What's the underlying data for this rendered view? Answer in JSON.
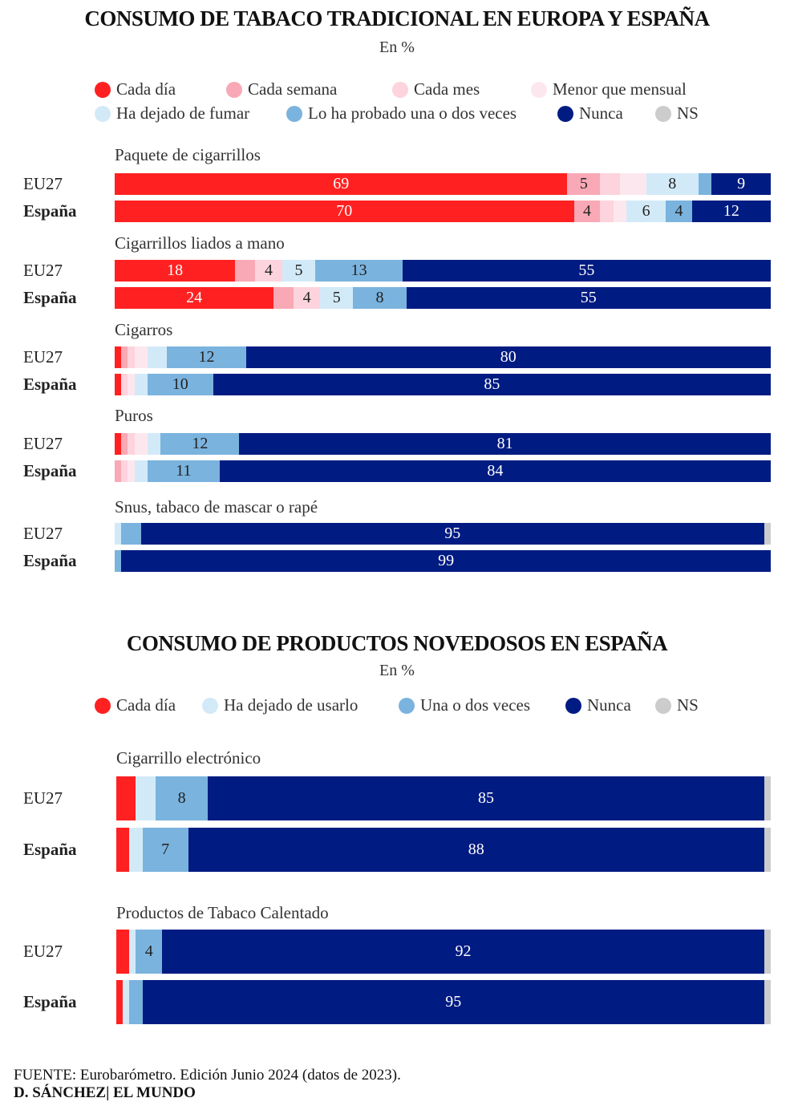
{
  "colors": {
    "cada_dia": "#ff2121",
    "cada_semana": "#f8a9b5",
    "cada_mes": "#fdd3dd",
    "menor_mensual": "#fde7ee",
    "dejado": "#d2eaf8",
    "probado": "#7ab3de",
    "nunca": "#001b82",
    "ns": "#cccccc"
  },
  "chart_data": [
    {
      "type": "bar",
      "stacked": true,
      "orientation": "horizontal",
      "title": "CONSUMO DE TABACO TRADICIONAL EN EUROPA Y ESPAÑA",
      "subtitle": "En %",
      "legend": [
        {
          "key": "cada_dia",
          "label": "Cada día"
        },
        {
          "key": "cada_semana",
          "label": "Cada semana"
        },
        {
          "key": "cada_mes",
          "label": "Cada mes"
        },
        {
          "key": "menor_mensual",
          "label": "Menor que mensual"
        },
        {
          "key": "dejado",
          "label": "Ha dejado de fumar"
        },
        {
          "key": "probado",
          "label": "Lo ha probado una o dos veces"
        },
        {
          "key": "nunca",
          "label": "Nunca"
        },
        {
          "key": "ns",
          "label": "NS"
        }
      ],
      "series_order": [
        "cada_dia",
        "cada_semana",
        "cada_mes",
        "menor_mensual",
        "dejado",
        "probado",
        "nunca",
        "ns"
      ],
      "groups": [
        {
          "category": "Paquete de cigarrillos",
          "rows": [
            {
              "label": "EU27",
              "values": [
                69,
                5,
                3,
                4,
                8,
                2,
                9,
                0
              ],
              "labels": [
                "69",
                "5",
                "",
                "",
                "8",
                "",
                "9",
                ""
              ]
            },
            {
              "label": "España",
              "values": [
                70,
                4,
                2,
                2,
                6,
                4,
                12,
                0
              ],
              "labels": [
                "70",
                "4",
                "",
                "",
                "6",
                "4",
                "12",
                ""
              ]
            }
          ]
        },
        {
          "category": "Cigarrillos liados a mano",
          "rows": [
            {
              "label": "EU27",
              "values": [
                18,
                3,
                4,
                0,
                5,
                13,
                55,
                0
              ],
              "labels": [
                "18",
                "",
                "4",
                "",
                "5",
                "13",
                "55",
                ""
              ]
            },
            {
              "label": "España",
              "values": [
                24,
                3,
                4,
                0,
                5,
                8,
                55,
                0
              ],
              "labels": [
                "24",
                "",
                "4",
                "",
                "5",
                "8",
                "55",
                ""
              ]
            }
          ]
        },
        {
          "category": "Cigarros",
          "rows": [
            {
              "label": "EU27",
              "values": [
                1,
                1,
                1,
                2,
                3,
                12,
                80,
                0
              ],
              "labels": [
                "",
                "",
                "",
                "",
                "",
                "12",
                "80",
                ""
              ]
            },
            {
              "label": "España",
              "values": [
                1,
                0,
                1,
                1,
                2,
                10,
                85,
                0
              ],
              "labels": [
                "",
                "",
                "",
                "",
                "",
                "10",
                "85",
                ""
              ]
            }
          ]
        },
        {
          "category": "Puros",
          "rows": [
            {
              "label": "EU27",
              "values": [
                1,
                1,
                1,
                2,
                2,
                12,
                81,
                0
              ],
              "labels": [
                "",
                "",
                "",
                "",
                "",
                "12",
                "81",
                ""
              ]
            },
            {
              "label": "España",
              "values": [
                0,
                1,
                1,
                1,
                2,
                11,
                84,
                0
              ],
              "labels": [
                "",
                "",
                "",
                "",
                "",
                "11",
                "84",
                ""
              ]
            }
          ]
        },
        {
          "category": "Snus, tabaco de mascar o rapé",
          "rows": [
            {
              "label": "EU27",
              "values": [
                0,
                0,
                0,
                0,
                1,
                3,
                95,
                1
              ],
              "labels": [
                "",
                "",
                "",
                "",
                "",
                "",
                "95",
                ""
              ]
            },
            {
              "label": "España",
              "values": [
                0,
                0,
                0,
                0,
                0,
                1,
                99,
                0
              ],
              "labels": [
                "",
                "",
                "",
                "",
                "",
                "",
                "99",
                ""
              ]
            }
          ]
        }
      ]
    },
    {
      "type": "bar",
      "stacked": true,
      "orientation": "horizontal",
      "title": "CONSUMO DE PRODUCTOS NOVEDOSOS EN ESPAÑA",
      "subtitle": "En %",
      "legend": [
        {
          "key": "cada_dia",
          "label": "Cada día"
        },
        {
          "key": "dejado",
          "label": "Ha dejado de usarlo"
        },
        {
          "key": "probado",
          "label": "Una o dos veces"
        },
        {
          "key": "nunca",
          "label": "Nunca"
        },
        {
          "key": "ns",
          "label": "NS"
        }
      ],
      "series_order": [
        "cada_dia",
        "dejado",
        "probado",
        "nunca",
        "ns"
      ],
      "groups": [
        {
          "category": "Cigarrillo electrónico",
          "rows": [
            {
              "label": "EU27",
              "values": [
                3,
                3,
                8,
                85,
                1
              ],
              "labels": [
                "",
                "",
                "8",
                "85",
                ""
              ]
            },
            {
              "label": "España",
              "values": [
                2,
                2,
                7,
                88,
                1
              ],
              "labels": [
                "",
                "",
                "7",
                "88",
                ""
              ]
            }
          ]
        },
        {
          "category": "Productos de Tabaco Calentado",
          "rows": [
            {
              "label": "EU27",
              "values": [
                2,
                1,
                4,
                92,
                1
              ],
              "labels": [
                "",
                "",
                "4",
                "92",
                ""
              ]
            },
            {
              "label": "España",
              "values": [
                1,
                1,
                2,
                95,
                1
              ],
              "labels": [
                "",
                "",
                "",
                "95",
                ""
              ]
            }
          ]
        }
      ]
    }
  ],
  "footer": {
    "source": "FUENTE: Eurobarómetro. Edición Junio 2024 (datos de 2023).",
    "credit": "D. SÁNCHEZ| EL MUNDO"
  }
}
